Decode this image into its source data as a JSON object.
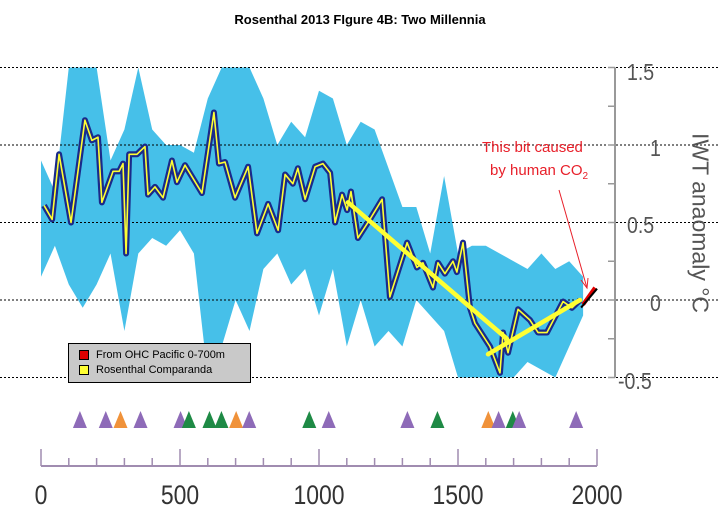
{
  "chart_data": {
    "type": "line",
    "title": "Rosenthal 2013 FIgure 4B: Two Millennia",
    "ylabel": "IWT anaomaly °C",
    "xlabel": "",
    "xlim": [
      0,
      2000
    ],
    "ylim": [
      -0.5,
      1.5
    ],
    "x_ticks": [
      "0",
      "500",
      "1000",
      "1500",
      "2000"
    ],
    "y_ticks": [
      "1.5",
      "1",
      "0.5",
      "0",
      "-0.5"
    ],
    "grid": "horizontal dotted",
    "legend_placement": "bottom-left",
    "legend": [
      {
        "label": "From OHC Pacific 0-700m",
        "color": "#e00000"
      },
      {
        "label": "Rosenthal Comparanda",
        "color": "#ffff33"
      }
    ],
    "uncertainty_band": {
      "color": "#3cbde8",
      "years": [
        0,
        50,
        100,
        150,
        200,
        250,
        300,
        350,
        400,
        450,
        500,
        550,
        600,
        650,
        700,
        750,
        800,
        850,
        900,
        950,
        1000,
        1050,
        1100,
        1150,
        1200,
        1250,
        1300,
        1350,
        1400,
        1450,
        1500,
        1550,
        1600,
        1650,
        1700,
        1750,
        1800,
        1850,
        1900,
        1950
      ],
      "upper": [
        0.9,
        0.7,
        1.5,
        1.5,
        1.5,
        0.9,
        1.1,
        1.5,
        1.1,
        1.0,
        1.0,
        0.95,
        1.3,
        1.5,
        1.5,
        1.5,
        1.3,
        1.0,
        1.15,
        1.05,
        1.35,
        1.3,
        1.0,
        1.15,
        1.1,
        0.85,
        0.6,
        0.6,
        0.3,
        0.8,
        0.3,
        0.35,
        0.35,
        0.3,
        0.25,
        0.2,
        0.3,
        0.2,
        0.25,
        0.15
      ],
      "lower": [
        0.15,
        0.35,
        0.1,
        -0.05,
        0.1,
        0.3,
        -0.2,
        0.3,
        0.4,
        0.35,
        0.45,
        0.3,
        -0.5,
        -0.3,
        0.0,
        -0.2,
        0.2,
        0.3,
        0.1,
        0.2,
        -0.1,
        0.2,
        -0.3,
        0.0,
        -0.3,
        -0.2,
        -0.3,
        0.0,
        -0.1,
        -0.2,
        -0.5,
        -0.5,
        -0.5,
        -0.5,
        -0.5,
        -0.4,
        -0.45,
        -0.5,
        -0.3,
        -0.1
      ]
    },
    "series": [
      {
        "name": "Rosenthal Comparanda",
        "color": "#ffff33",
        "x": [
          11,
          40,
          65,
          108,
          158,
          183,
          205,
          219,
          259,
          281,
          295,
          306,
          317,
          345,
          374,
          385,
          410,
          439,
          471,
          489,
          518,
          579,
          622,
          640,
          662,
          698,
          745,
          777,
          817,
          853,
          878,
          906,
          924,
          950,
          986,
          1014,
          1040,
          1058,
          1083,
          1101,
          1115,
          1140,
          1183,
          1227,
          1255,
          1317,
          1352,
          1374,
          1410,
          1428,
          1453,
          1482,
          1496,
          1518,
          1543,
          1561,
          1615,
          1651,
          1662,
          1680,
          1716,
          1759,
          1788,
          1820,
          1878,
          1910,
          1939
        ],
        "y": [
          0.61,
          0.52,
          0.94,
          0.5,
          1.16,
          1.03,
          1.05,
          0.63,
          0.83,
          0.83,
          0.88,
          0.3,
          0.94,
          0.94,
          0.99,
          0.68,
          0.73,
          0.66,
          0.9,
          0.76,
          0.87,
          0.69,
          1.21,
          0.88,
          0.89,
          0.66,
          0.86,
          0.43,
          0.62,
          0.45,
          0.81,
          0.75,
          0.85,
          0.65,
          0.86,
          0.88,
          0.82,
          0.5,
          0.68,
          0.58,
          0.7,
          0.4,
          0.52,
          0.65,
          0.02,
          0.37,
          0.21,
          0.24,
          0.08,
          0.24,
          0.17,
          0.25,
          0.18,
          0.37,
          -0.05,
          -0.15,
          -0.3,
          -0.47,
          -0.21,
          -0.34,
          -0.06,
          -0.13,
          -0.21,
          -0.21,
          -0.01,
          -0.05,
          0.0
        ]
      },
      {
        "name": "From OHC Pacific 0-700m",
        "color": "#e00000",
        "x": [
          1950,
          1993
        ],
        "y": [
          -0.01,
          0.06
        ]
      }
    ],
    "trend_lines": [
      {
        "color": "#ffff33",
        "x": [
          1104,
          1676
        ],
        "y": [
          0.63,
          -0.25
        ]
      },
      {
        "color": "#ffff33",
        "x": [
          1608,
          1939
        ],
        "y": [
          -0.35,
          0.0
        ]
      }
    ],
    "proxy_markers": {
      "colors": {
        "purple": "#8e6bb8",
        "orange": "#f0923a",
        "green": "#1e8a45"
      },
      "items": [
        {
          "year": 140,
          "color": "purple"
        },
        {
          "year": 233,
          "color": "purple"
        },
        {
          "year": 286,
          "color": "orange"
        },
        {
          "year": 358,
          "color": "purple"
        },
        {
          "year": 502,
          "color": "purple"
        },
        {
          "year": 532,
          "color": "green"
        },
        {
          "year": 606,
          "color": "green"
        },
        {
          "year": 649,
          "color": "green"
        },
        {
          "year": 702,
          "color": "orange"
        },
        {
          "year": 749,
          "color": "purple"
        },
        {
          "year": 965,
          "color": "green"
        },
        {
          "year": 1035,
          "color": "purple"
        },
        {
          "year": 1318,
          "color": "purple"
        },
        {
          "year": 1426,
          "color": "green"
        },
        {
          "year": 1609,
          "color": "orange"
        },
        {
          "year": 1646,
          "color": "purple"
        },
        {
          "year": 1697,
          "color": "green"
        },
        {
          "year": 1720,
          "color": "purple"
        },
        {
          "year": 1925,
          "color": "purple"
        }
      ]
    },
    "annotation": {
      "line1": "This bit caused",
      "line2": "by human CO",
      "subscript": "2",
      "color": "#e8202a"
    }
  }
}
